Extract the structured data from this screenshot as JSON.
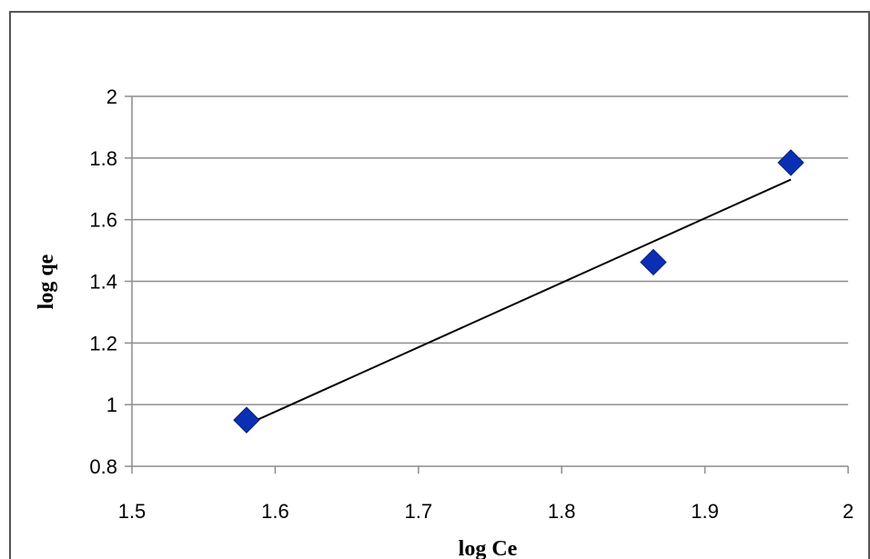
{
  "chart_data": {
    "type": "scatter",
    "title": "",
    "xlabel": "log Ce",
    "ylabel": "log qe",
    "xlim": [
      1.5,
      2
    ],
    "ylim": [
      0.8,
      2
    ],
    "x_ticks": [
      "1.5",
      "1.6",
      "1.7",
      "1.8",
      "1.9",
      "2"
    ],
    "y_ticks": [
      "0.8",
      "1",
      "1.2",
      "1.4",
      "1.6",
      "1.8",
      "2"
    ],
    "x_tick_values": [
      1.5,
      1.6,
      1.7,
      1.8,
      1.9,
      2.0
    ],
    "y_tick_values": [
      0.8,
      1.0,
      1.2,
      1.4,
      1.6,
      1.8,
      2.0
    ],
    "grid": "horizontal",
    "legend": "none",
    "series": [
      {
        "marker": "diamond",
        "color": "#0a2fb4",
        "points": [
          {
            "x": 1.58,
            "y": 0.95
          },
          {
            "x": 1.864,
            "y": 1.462
          },
          {
            "x": 1.96,
            "y": 1.785
          }
        ]
      }
    ],
    "trendline": {
      "type": "linear",
      "color": "#000000",
      "from": {
        "x": 1.58,
        "y": 0.935
      },
      "to": {
        "x": 1.96,
        "y": 1.73
      }
    }
  }
}
